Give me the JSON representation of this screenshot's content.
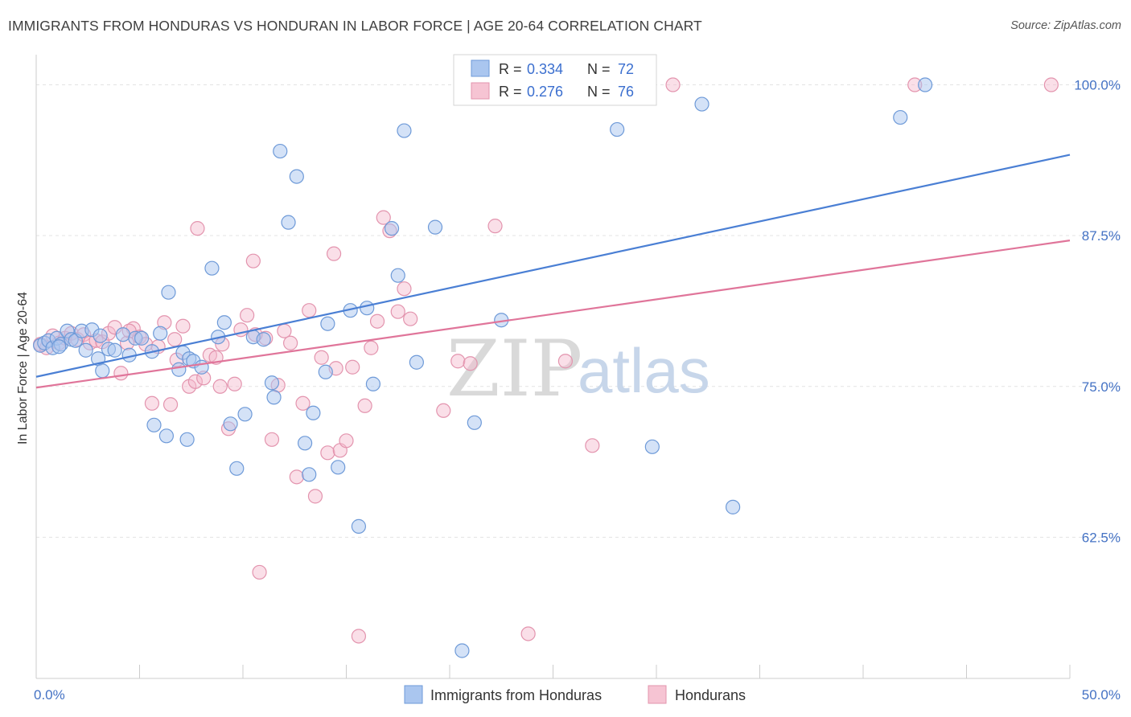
{
  "header": {
    "title": "IMMIGRANTS FROM HONDURAS VS HONDURAN IN LABOR FORCE | AGE 20-64 CORRELATION CHART",
    "source": "Source: ZipAtlas.com"
  },
  "watermark": {
    "part1": "ZIP",
    "part2": "atlas"
  },
  "legend_top": {
    "r_label": "R =",
    "n_label": "N =",
    "series": [
      {
        "r": "0.334",
        "n": "72"
      },
      {
        "r": "0.276",
        "n": "76"
      }
    ]
  },
  "legend_bottom": {
    "items": [
      "Immigrants from Honduras",
      "Hondurans"
    ]
  },
  "chart_data": {
    "type": "scatter",
    "title": "IMMIGRANTS FROM HONDURAS VS HONDURAN IN LABOR FORCE | AGE 20-64 CORRELATION CHART",
    "xlabel": "",
    "ylabel": "In Labor Force | Age 20-64",
    "xlim": [
      0,
      50
    ],
    "ylim": [
      50.8,
      102.5
    ],
    "x_tick_labels": [
      "0.0%",
      "50.0%"
    ],
    "y_ticks": [
      62.5,
      75.0,
      87.5,
      100.0
    ],
    "y_tick_labels": [
      "62.5%",
      "75.0%",
      "87.5%",
      "100.0%"
    ],
    "grid": true,
    "colors": {
      "Immigrants from Honduras": "#4a7fd4",
      "Hondurans": "#e0759a",
      "blue_fill": "#aac6ef",
      "pink_fill": "#f4b9cb"
    },
    "series": [
      {
        "name": "Immigrants from Honduras",
        "trend": {
          "x": [
            0,
            50
          ],
          "y": [
            75.8,
            94.2
          ]
        },
        "points": [
          [
            0.2,
            78.4
          ],
          [
            0.4,
            78.6
          ],
          [
            0.6,
            78.8
          ],
          [
            0.8,
            78.2
          ],
          [
            1.0,
            79.0
          ],
          [
            1.2,
            78.5
          ],
          [
            1.5,
            79.6
          ],
          [
            1.7,
            78.9
          ],
          [
            1.9,
            78.8
          ],
          [
            2.2,
            79.6
          ],
          [
            2.4,
            78.0
          ],
          [
            2.7,
            79.7
          ],
          [
            3.0,
            77.3
          ],
          [
            3.2,
            76.3
          ],
          [
            3.5,
            78.1
          ],
          [
            3.8,
            78.0
          ],
          [
            4.2,
            79.3
          ],
          [
            4.5,
            77.6
          ],
          [
            4.8,
            79.0
          ],
          [
            5.1,
            79.0
          ],
          [
            5.6,
            77.9
          ],
          [
            5.7,
            71.8
          ],
          [
            6.3,
            70.9
          ],
          [
            6.4,
            82.8
          ],
          [
            6.9,
            76.4
          ],
          [
            7.1,
            77.8
          ],
          [
            7.3,
            70.6
          ],
          [
            7.4,
            77.3
          ],
          [
            7.6,
            77.1
          ],
          [
            8.0,
            76.6
          ],
          [
            8.5,
            84.8
          ],
          [
            9.1,
            80.3
          ],
          [
            9.4,
            71.9
          ],
          [
            9.7,
            68.2
          ],
          [
            10.1,
            72.7
          ],
          [
            10.5,
            79.1
          ],
          [
            11.0,
            78.9
          ],
          [
            11.5,
            74.1
          ],
          [
            11.8,
            94.5
          ],
          [
            12.2,
            88.6
          ],
          [
            12.6,
            92.4
          ],
          [
            13.0,
            70.3
          ],
          [
            13.4,
            72.8
          ],
          [
            14.0,
            76.2
          ],
          [
            14.6,
            68.3
          ],
          [
            15.2,
            81.3
          ],
          [
            15.6,
            63.4
          ],
          [
            16.0,
            81.5
          ],
          [
            16.3,
            75.2
          ],
          [
            17.2,
            88.1
          ],
          [
            17.5,
            84.2
          ],
          [
            17.8,
            96.2
          ],
          [
            18.4,
            77.0
          ],
          [
            19.3,
            88.2
          ],
          [
            20.6,
            53.1
          ],
          [
            21.2,
            72.0
          ],
          [
            23.5,
            100.0
          ],
          [
            28.1,
            96.3
          ],
          [
            29.8,
            70.0
          ],
          [
            32.2,
            98.4
          ],
          [
            33.7,
            65.0
          ],
          [
            41.8,
            97.3
          ],
          [
            43.0,
            100.0
          ],
          [
            6.0,
            79.4
          ],
          [
            8.8,
            79.1
          ],
          [
            1.1,
            78.3
          ],
          [
            14.1,
            80.2
          ],
          [
            11.4,
            75.3
          ],
          [
            13.2,
            67.7
          ],
          [
            24.5,
            100.0
          ],
          [
            3.1,
            79.2
          ],
          [
            22.5,
            80.5
          ]
        ]
      },
      {
        "name": "Hondurans",
        "trend": {
          "x": [
            0,
            50
          ],
          "y": [
            74.9,
            87.1
          ]
        },
        "points": [
          [
            0.2,
            78.5
          ],
          [
            0.5,
            78.2
          ],
          [
            0.8,
            79.2
          ],
          [
            1.1,
            78.6
          ],
          [
            1.4,
            79.0
          ],
          [
            1.7,
            79.4
          ],
          [
            2.0,
            78.9
          ],
          [
            2.3,
            79.3
          ],
          [
            2.6,
            78.6
          ],
          [
            2.9,
            78.8
          ],
          [
            3.2,
            78.7
          ],
          [
            3.5,
            79.4
          ],
          [
            3.8,
            79.9
          ],
          [
            4.1,
            76.1
          ],
          [
            4.4,
            78.6
          ],
          [
            4.7,
            79.8
          ],
          [
            5.0,
            79.1
          ],
          [
            5.3,
            78.5
          ],
          [
            5.6,
            73.6
          ],
          [
            5.9,
            78.3
          ],
          [
            6.2,
            80.3
          ],
          [
            6.5,
            73.5
          ],
          [
            6.8,
            77.2
          ],
          [
            7.1,
            80.0
          ],
          [
            7.4,
            75.0
          ],
          [
            7.7,
            75.4
          ],
          [
            7.8,
            88.1
          ],
          [
            8.1,
            75.7
          ],
          [
            8.4,
            77.6
          ],
          [
            8.7,
            77.4
          ],
          [
            9.0,
            78.5
          ],
          [
            9.3,
            71.5
          ],
          [
            9.6,
            75.2
          ],
          [
            9.9,
            79.7
          ],
          [
            10.2,
            80.9
          ],
          [
            10.5,
            85.4
          ],
          [
            10.8,
            59.6
          ],
          [
            11.1,
            79.0
          ],
          [
            11.4,
            70.6
          ],
          [
            11.7,
            75.1
          ],
          [
            12.0,
            79.6
          ],
          [
            12.3,
            78.6
          ],
          [
            12.6,
            67.5
          ],
          [
            12.9,
            73.6
          ],
          [
            13.2,
            81.3
          ],
          [
            13.5,
            65.9
          ],
          [
            13.8,
            77.4
          ],
          [
            14.1,
            69.5
          ],
          [
            14.4,
            86.0
          ],
          [
            14.7,
            69.7
          ],
          [
            15.0,
            70.5
          ],
          [
            15.3,
            76.6
          ],
          [
            15.6,
            54.3
          ],
          [
            15.9,
            73.4
          ],
          [
            16.2,
            78.2
          ],
          [
            16.5,
            80.4
          ],
          [
            16.8,
            89.0
          ],
          [
            17.1,
            87.9
          ],
          [
            17.5,
            81.2
          ],
          [
            17.8,
            83.1
          ],
          [
            18.1,
            80.6
          ],
          [
            19.7,
            73.0
          ],
          [
            20.4,
            77.1
          ],
          [
            21.0,
            76.9
          ],
          [
            22.2,
            88.3
          ],
          [
            23.8,
            54.5
          ],
          [
            25.6,
            77.1
          ],
          [
            26.9,
            70.1
          ],
          [
            30.8,
            100.0
          ],
          [
            42.5,
            100.0
          ],
          [
            49.1,
            100.0
          ],
          [
            4.5,
            79.6
          ],
          [
            6.7,
            78.9
          ],
          [
            8.9,
            75.0
          ],
          [
            10.6,
            79.3
          ],
          [
            14.5,
            76.5
          ]
        ]
      }
    ]
  }
}
